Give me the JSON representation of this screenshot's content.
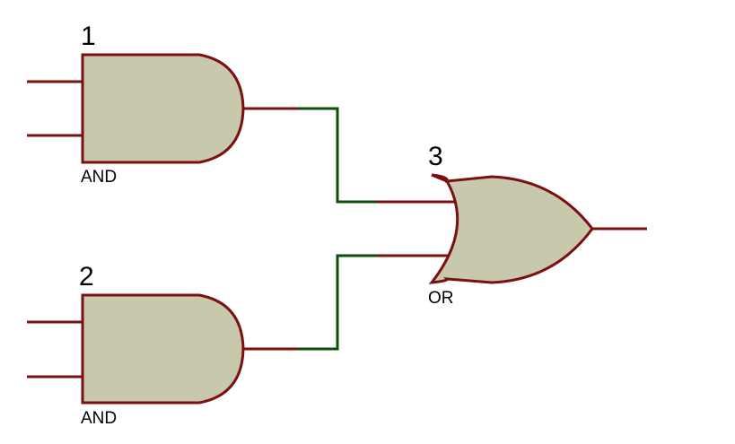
{
  "colors": {
    "background": "#ffffff",
    "gate_fill": "#c8c8ad",
    "gate_stroke": "#7a1010",
    "pin": "#7a1010",
    "wire": "#0b4d0b",
    "label": "#000000"
  },
  "gates": [
    {
      "ref": "1",
      "type": "AND"
    },
    {
      "ref": "2",
      "type": "AND"
    },
    {
      "ref": "3",
      "type": "OR"
    }
  ]
}
